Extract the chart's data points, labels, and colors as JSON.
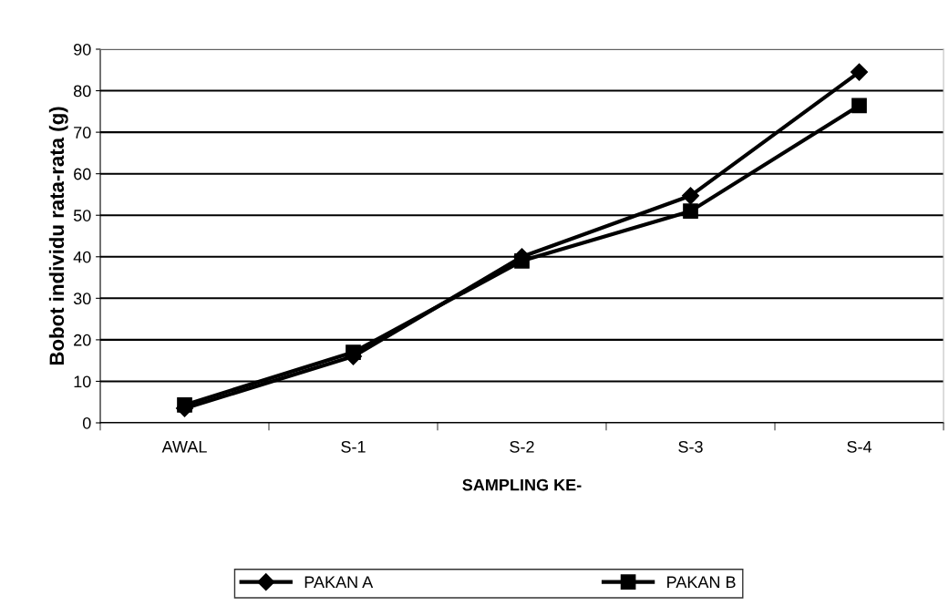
{
  "chart_data": {
    "type": "line",
    "xlabel": "SAMPLING KE-",
    "ylabel": "Bobot individu rata-rata (g)",
    "categories": [
      "AWAL",
      "S-1",
      "S-2",
      "S-3",
      "S-4"
    ],
    "series": [
      {
        "name": "PAKAN A",
        "color": "#000000",
        "marker": "diamond",
        "values": [
          3.5,
          16,
          40,
          54.7,
          84.5
        ]
      },
      {
        "name": "PAKAN B",
        "color": "#000000",
        "marker": "square",
        "values": [
          4.3,
          17,
          39,
          51,
          76.4
        ]
      }
    ],
    "ylim": [
      0,
      90
    ],
    "yticks": [
      0,
      10,
      20,
      30,
      40,
      50,
      60,
      70,
      80,
      90
    ],
    "grid": "y",
    "legend": "bottom",
    "line_style": "solid"
  }
}
